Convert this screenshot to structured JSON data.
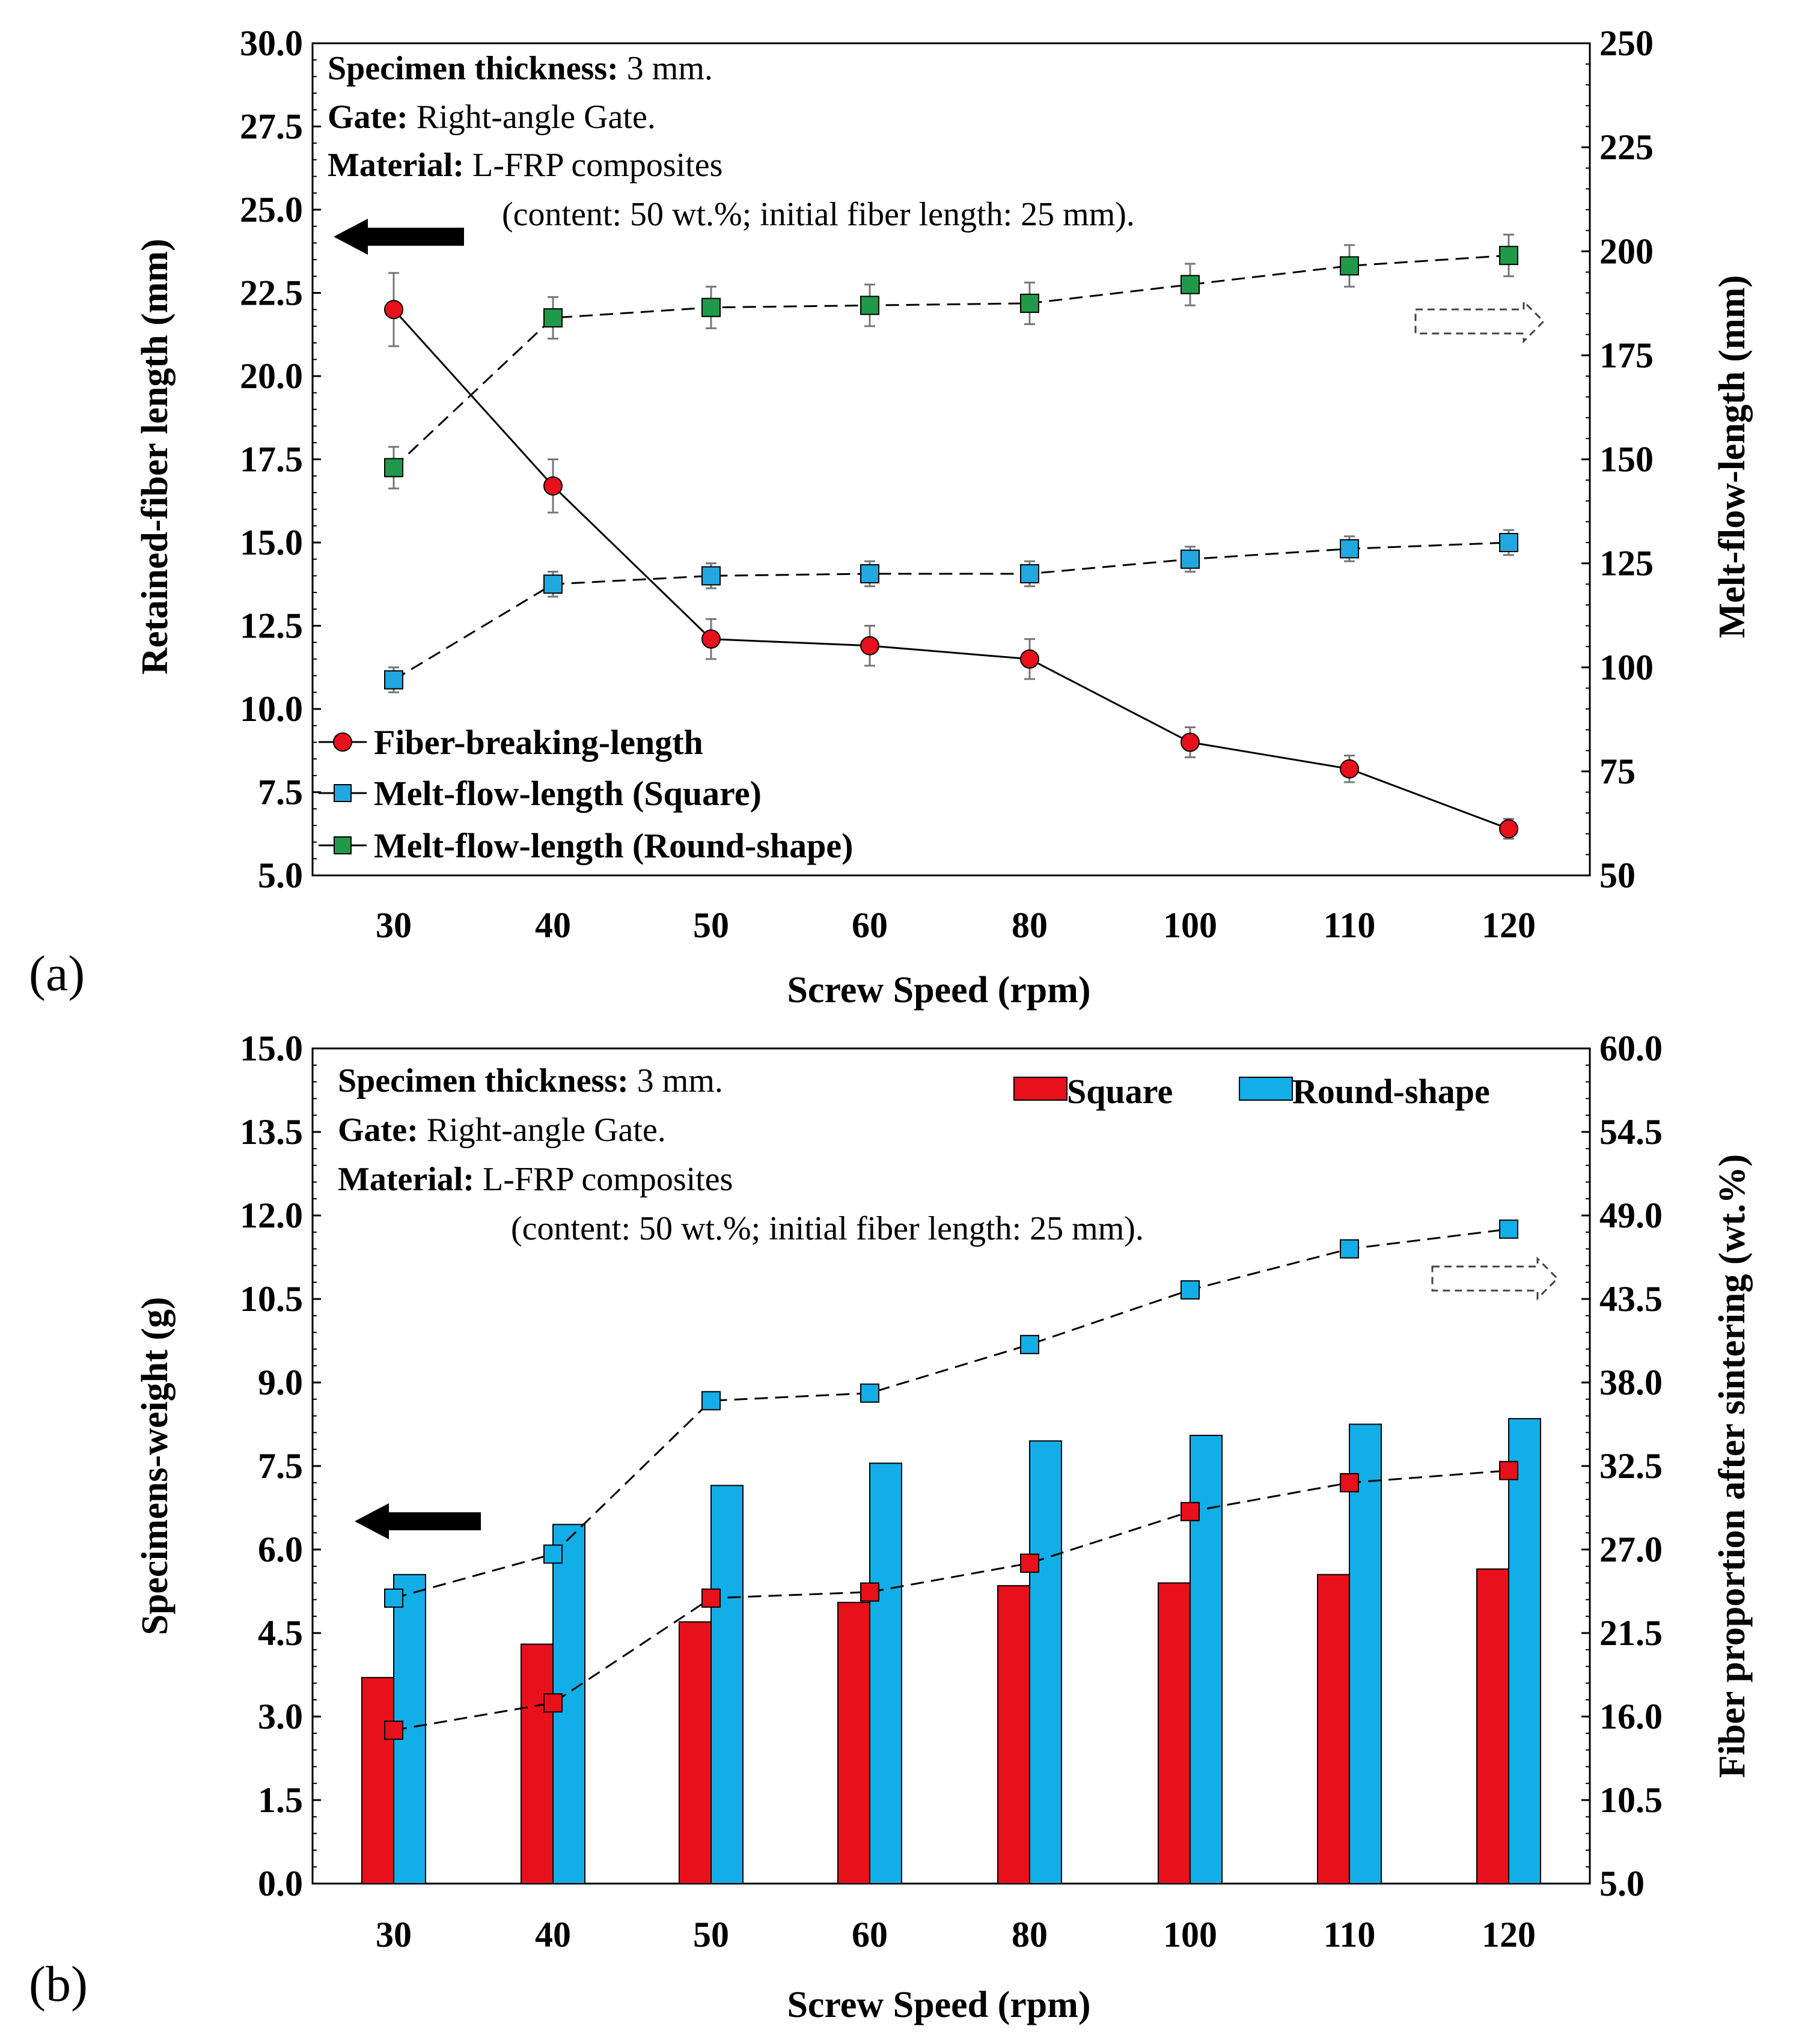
{
  "panel_a": {
    "tag": "(a)",
    "annotation": {
      "line1_bold": "Specimen thickness:",
      "line1_rest": " 3 mm.",
      "line2_bold": "Gate:",
      "line2_rest": " Right-angle Gate.",
      "line3_bold": "Material:",
      "line3_rest": " L-FRP composites",
      "line4": "(content: 50 wt.%; initial fiber length: 25 mm)."
    }
  },
  "panel_b": {
    "tag": "(b)",
    "annotation": {
      "line1_bold": "Specimen thickness:",
      "line1_rest": " 3 mm.",
      "line2_bold": "Gate:",
      "line2_rest": " Right-angle Gate.",
      "line3_bold": "Material:",
      "line3_rest": " L-FRP composites",
      "line4": "(content: 50 wt.%; initial fiber length: 25 mm)."
    }
  },
  "chart_data": [
    {
      "type": "line",
      "categories": [
        "30",
        "40",
        "50",
        "60",
        "80",
        "100",
        "110",
        "120"
      ],
      "xlabel": "Screw Speed (rpm)",
      "ylabel": "Retained-fiber length (mm)",
      "ylabel_right": "Melt-flow-length (mm)",
      "ylim": [
        5.0,
        30.0
      ],
      "yticks": [
        "5.0",
        "7.5",
        "10.0",
        "12.5",
        "15.0",
        "17.5",
        "20.0",
        "22.5",
        "25.0",
        "27.5",
        "30.0"
      ],
      "ylim_right": [
        50,
        250
      ],
      "yticks_right": [
        "50",
        "75",
        "100",
        "125",
        "150",
        "175",
        "200",
        "225",
        "250"
      ],
      "legend_position": "bottom-left",
      "series": [
        {
          "name": "Fiber-breaking-length",
          "axis": "left",
          "marker": "circle",
          "color": "#e8101a",
          "line": "solid",
          "values": [
            22.0,
            16.7,
            12.1,
            11.9,
            11.5,
            9.0,
            8.2,
            6.4
          ],
          "errors": [
            1.1,
            0.8,
            0.6,
            0.6,
            0.6,
            0.45,
            0.4,
            0.3
          ]
        },
        {
          "name": "Melt-flow-length (Square)",
          "axis": "right",
          "marker": "square",
          "color": "#22a8e0",
          "line": "dashed",
          "values": [
            97,
            120,
            122,
            122.5,
            122.5,
            126,
            128.5,
            130
          ],
          "errors": [
            3,
            3,
            3,
            3,
            3,
            3,
            3,
            3
          ]
        },
        {
          "name": "Melt-flow-length (Round-shape)",
          "axis": "right",
          "marker": "square",
          "color": "#1f9a48",
          "line": "dashed",
          "values": [
            148,
            184,
            186.5,
            187,
            187.5,
            192,
            196.5,
            199
          ],
          "errors": [
            5,
            5,
            5,
            5,
            5,
            5,
            5,
            5
          ]
        }
      ]
    },
    {
      "type": "bar",
      "categories": [
        "30",
        "40",
        "50",
        "60",
        "80",
        "100",
        "110",
        "120"
      ],
      "xlabel": "Screw Speed (rpm)",
      "ylabel": "Specimens-weight (g)",
      "ylabel_right": "Fiber proportion after sintering (wt.%)",
      "ylim": [
        0.0,
        15.0
      ],
      "yticks": [
        "0.0",
        "1.5",
        "3.0",
        "4.5",
        "6.0",
        "7.5",
        "9.0",
        "10.5",
        "12.0",
        "13.5",
        "15.0"
      ],
      "ylim_right": [
        5.0,
        60.0
      ],
      "yticks_right": [
        "5.0",
        "10.5",
        "16.0",
        "21.5",
        "27.0",
        "32.5",
        "38.0",
        "43.5",
        "49.0",
        "54.5",
        "60.0"
      ],
      "legend_position": "top-right",
      "series": [
        {
          "name": "Square",
          "axis": "left",
          "kind": "bar",
          "color": "#e8101a",
          "values": [
            3.7,
            4.3,
            4.7,
            5.05,
            5.35,
            5.4,
            5.55,
            5.65
          ]
        },
        {
          "name": "Round-shape",
          "axis": "left",
          "kind": "bar",
          "color": "#12aee8",
          "values": [
            5.55,
            6.45,
            7.15,
            7.55,
            7.95,
            8.05,
            8.25,
            8.35
          ]
        },
        {
          "axis": "right",
          "kind": "line",
          "marker": "square",
          "color": "#e8101a",
          "line": "dashed",
          "values": [
            15.1,
            16.9,
            23.8,
            24.2,
            26.1,
            29.5,
            31.4,
            32.2
          ]
        },
        {
          "axis": "right",
          "kind": "line",
          "marker": "square",
          "color": "#12aee8",
          "line": "dashed",
          "values": [
            23.8,
            26.7,
            36.8,
            37.3,
            40.5,
            44.1,
            46.8,
            48.1
          ]
        }
      ]
    }
  ]
}
